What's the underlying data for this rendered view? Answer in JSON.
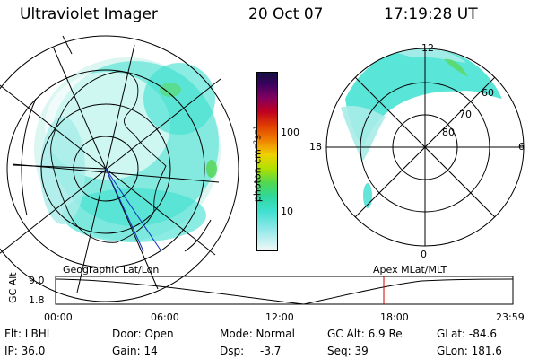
{
  "header": {
    "title": "Ultraviolet Imager",
    "date": "20 Oct 07",
    "time": "17:19:28 UT"
  },
  "colorbar": {
    "label": "photon cm⁻²s⁻¹",
    "ticks": [
      "100",
      "10"
    ],
    "scale": "log"
  },
  "polar_plot": {
    "mlt_labels": {
      "top": "12",
      "left": "18",
      "right": "6",
      "bottom": "0"
    },
    "lat_labels": [
      "60",
      "70",
      "80"
    ]
  },
  "timeline": {
    "y_label": "GC Alt",
    "y_ticks": [
      "9.0",
      "1.8"
    ],
    "left_title": "Geographic Lat/Lon",
    "right_title": "Apex  MLat/MLT",
    "x_ticks": [
      "00:00",
      "06:00",
      "12:00",
      "18:00",
      "23:59"
    ],
    "cursor_time": "17:19",
    "cursor_color": "#d00000"
  },
  "info": {
    "flt": "Flt: LBHL",
    "door": "Door: Open",
    "mode": "Mode: Normal",
    "gc_alt": "GC Alt: 6.9 Re",
    "glat": "GLat: -84.6",
    "ip": "IP: 36.0",
    "gain": "Gain: 14",
    "dsp_label": "Dsp:",
    "dsp_value": "-3.7",
    "seq": "Seq: 39",
    "glon": "GLon: 181.6"
  },
  "colors": {
    "aurora_main": "#3ce0d0",
    "aurora_light": "#a8ece8",
    "aurora_green": "#5ad860"
  }
}
